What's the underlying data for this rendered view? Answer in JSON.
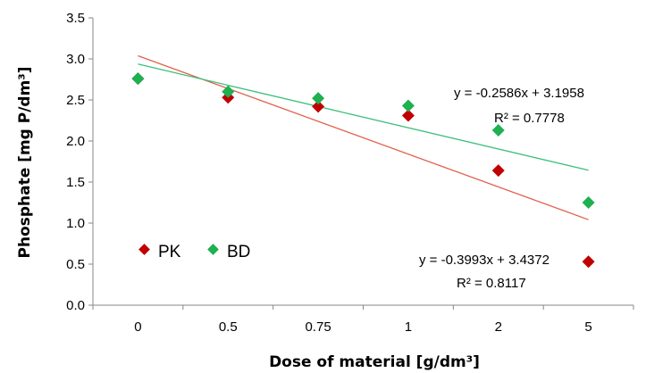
{
  "chart_data": {
    "type": "scatter",
    "xlabel": "Dose of material [g/dm³]",
    "ylabel": "Phosphate [mg P/dm³]",
    "categories": [
      "0",
      "0.5",
      "0.75",
      "1",
      "2",
      "5"
    ],
    "ylim": [
      0,
      3.5
    ],
    "yticks": [
      "0.0",
      "0.5",
      "1.0",
      "1.5",
      "2.0",
      "2.5",
      "3.0",
      "3.5"
    ],
    "grid": false,
    "legend_position": "bottom-left",
    "series": [
      {
        "name": "PK",
        "color": "#c00000",
        "marker": "diamond",
        "values": [
          2.76,
          2.53,
          2.42,
          2.31,
          1.64,
          0.53
        ],
        "trendline": {
          "slope": -0.3993,
          "intercept": 3.4372,
          "color": "#e0614a",
          "equation": "y = -0.3993x + 3.4372",
          "r2": "R² = 0.8117"
        }
      },
      {
        "name": "BD",
        "color": "#1fb050",
        "marker": "diamond",
        "values": [
          2.76,
          2.6,
          2.52,
          2.43,
          2.13,
          1.25
        ],
        "trendline": {
          "slope": -0.2586,
          "intercept": 3.1958,
          "color": "#3cc07a",
          "equation": "y = -0.2586x + 3.1958",
          "r2": "R² = 0.7778"
        }
      }
    ]
  }
}
